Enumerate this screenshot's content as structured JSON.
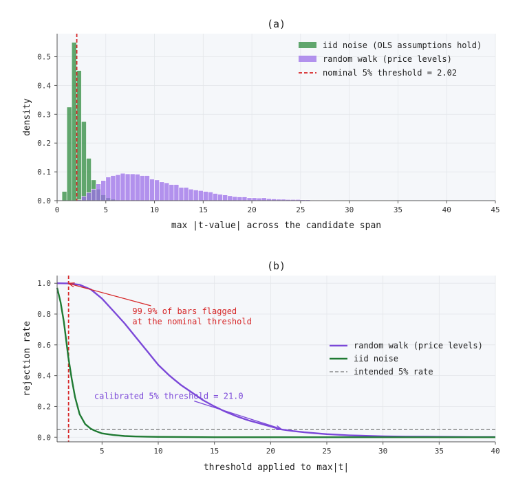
{
  "chart_data": [
    {
      "panel": "a",
      "type": "bar",
      "title": "(a)",
      "xlabel": "max |t-value| across the candidate span",
      "ylabel": "density",
      "xlim": [
        0,
        45
      ],
      "ylim": [
        0,
        0.58
      ],
      "xticks": [
        0,
        5,
        10,
        15,
        20,
        25,
        30,
        35,
        40,
        45
      ],
      "yticks": [
        0.0,
        0.1,
        0.2,
        0.3,
        0.4,
        0.5
      ],
      "ytick_labels": [
        "0.0",
        "0.1",
        "0.2",
        "0.3",
        "0.4",
        "0.5"
      ],
      "grid": true,
      "legend_position": "top-right",
      "threshold": {
        "label": "nominal 5% threshold = 2.02",
        "x": 2.02,
        "color": "#d62728"
      },
      "series": [
        {
          "name": "iid noise (OLS assumptions hold)",
          "color": "#2e8b3e",
          "bin_width": 0.5,
          "x": [
            0.75,
            1.25,
            1.75,
            2.25,
            2.75,
            3.25,
            3.75,
            4.25,
            4.75,
            5.25,
            5.75
          ],
          "values": [
            0.032,
            0.325,
            0.55,
            0.452,
            0.275,
            0.147,
            0.072,
            0.04,
            0.02,
            0.01,
            0.005
          ]
        },
        {
          "name": "random walk (price levels)",
          "color": "#9b6fe8",
          "bin_width": 0.5,
          "x": [
            2.25,
            2.75,
            3.25,
            3.75,
            4.25,
            4.75,
            5.25,
            5.75,
            6.25,
            6.75,
            7.25,
            7.75,
            8.25,
            8.75,
            9.25,
            9.75,
            10.25,
            10.75,
            11.25,
            11.75,
            12.25,
            12.75,
            13.25,
            13.75,
            14.25,
            14.75,
            15.25,
            15.75,
            16.25,
            16.75,
            17.25,
            17.75,
            18.25,
            18.75,
            19.25,
            19.75,
            20.25,
            20.75,
            21.25,
            21.75,
            22.25,
            22.75,
            23.25,
            23.75,
            24.25,
            24.75,
            25.25,
            25.75,
            26.25,
            26.75,
            27.25,
            27.75,
            28.25,
            28.75,
            29.25,
            29.75,
            30.25,
            30.75,
            31.25,
            31.75,
            32.25,
            32.75,
            33.25,
            33.75,
            34.25,
            34.75,
            35.25,
            35.75,
            36.25,
            36.75,
            37.25,
            37.75,
            38.25,
            38.75,
            39.25,
            39.75,
            40.25,
            40.75,
            41.25,
            41.75,
            42.25,
            42.75,
            43.25,
            43.75,
            44.25,
            44.75
          ],
          "values": [
            0.003,
            0.015,
            0.028,
            0.04,
            0.058,
            0.07,
            0.082,
            0.087,
            0.09,
            0.095,
            0.093,
            0.093,
            0.092,
            0.087,
            0.087,
            0.075,
            0.072,
            0.065,
            0.062,
            0.056,
            0.056,
            0.046,
            0.046,
            0.04,
            0.037,
            0.035,
            0.032,
            0.03,
            0.025,
            0.022,
            0.02,
            0.017,
            0.014,
            0.013,
            0.013,
            0.01,
            0.01,
            0.009,
            0.01,
            0.007,
            0.006,
            0.005,
            0.005,
            0.004,
            0.004,
            0.004,
            0.003,
            0.003,
            0.002,
            0.002,
            0.002,
            0.002,
            0.002,
            0.001,
            0.001,
            0.001,
            0.001,
            0.001,
            0.001,
            0.001,
            0.001,
            0.001,
            0.001,
            0.001,
            0.001,
            0.0,
            0.0,
            0.0,
            0.0,
            0.0,
            0.0,
            0.0,
            0.0,
            0.0,
            0.0,
            0.0,
            0.0,
            0.0,
            0.0,
            0.0,
            0.0,
            0.0,
            0.0,
            0.0,
            0.0,
            0.0
          ]
        }
      ]
    },
    {
      "panel": "b",
      "type": "line",
      "title": "(b)",
      "xlabel": "threshold applied to max|t|",
      "ylabel": "rejection rate",
      "xlim": [
        1,
        40
      ],
      "ylim": [
        -0.03,
        1.05
      ],
      "xticks": [
        5,
        10,
        15,
        20,
        25,
        30,
        35,
        40
      ],
      "yticks": [
        0.0,
        0.2,
        0.4,
        0.6,
        0.8,
        1.0
      ],
      "ytick_labels": [
        "0.0",
        "0.2",
        "0.4",
        "0.6",
        "0.8",
        "1.0"
      ],
      "grid": true,
      "legend_position": "center-right",
      "threshold_line": {
        "x": 2.02,
        "color": "#d62728"
      },
      "intended_rate": {
        "label": "intended 5% rate",
        "y": 0.05,
        "color": "#555555"
      },
      "series": [
        {
          "name": "random walk (price levels)",
          "color": "#7b48d8",
          "x": [
            1,
            2,
            3,
            4,
            5,
            6,
            7,
            8,
            9,
            10,
            11,
            12,
            13,
            14,
            15,
            16,
            17,
            18,
            19,
            20,
            21,
            22,
            23,
            24,
            25,
            26,
            27,
            28,
            29,
            30,
            32,
            34,
            36,
            38,
            40
          ],
          "y": [
            1.0,
            0.999,
            0.99,
            0.96,
            0.9,
            0.82,
            0.74,
            0.65,
            0.56,
            0.47,
            0.4,
            0.34,
            0.29,
            0.24,
            0.2,
            0.165,
            0.135,
            0.11,
            0.09,
            0.07,
            0.05,
            0.04,
            0.032,
            0.026,
            0.02,
            0.016,
            0.012,
            0.01,
            0.008,
            0.006,
            0.004,
            0.003,
            0.002,
            0.001,
            0.001
          ]
        },
        {
          "name": "iid noise",
          "color": "#1f7a33",
          "x": [
            1,
            1.3,
            1.6,
            2.0,
            2.3,
            2.6,
            3.0,
            3.5,
            4.0,
            4.5,
            5.0,
            6.0,
            7.0,
            8.0,
            9.0,
            10.0,
            15.0,
            20.0,
            30.0,
            40.0
          ],
          "y": [
            0.97,
            0.88,
            0.75,
            0.52,
            0.38,
            0.26,
            0.15,
            0.085,
            0.055,
            0.038,
            0.025,
            0.014,
            0.008,
            0.005,
            0.003,
            0.002,
            0.0,
            0.0,
            0.0,
            0.0
          ]
        }
      ],
      "annotations": [
        {
          "text_lines": [
            "99.9% of bars flagged",
            "at the nominal threshold"
          ],
          "color": "#d62728",
          "text_at": [
            7.7,
            0.8
          ],
          "arrow_to": [
            2.02,
            0.999
          ]
        },
        {
          "text_lines": [
            "calibrated 5% threshold = 21.0"
          ],
          "color": "#7b48d8",
          "text_at": [
            4.3,
            0.25
          ],
          "arrow_to": [
            21.0,
            0.05
          ]
        }
      ]
    }
  ]
}
